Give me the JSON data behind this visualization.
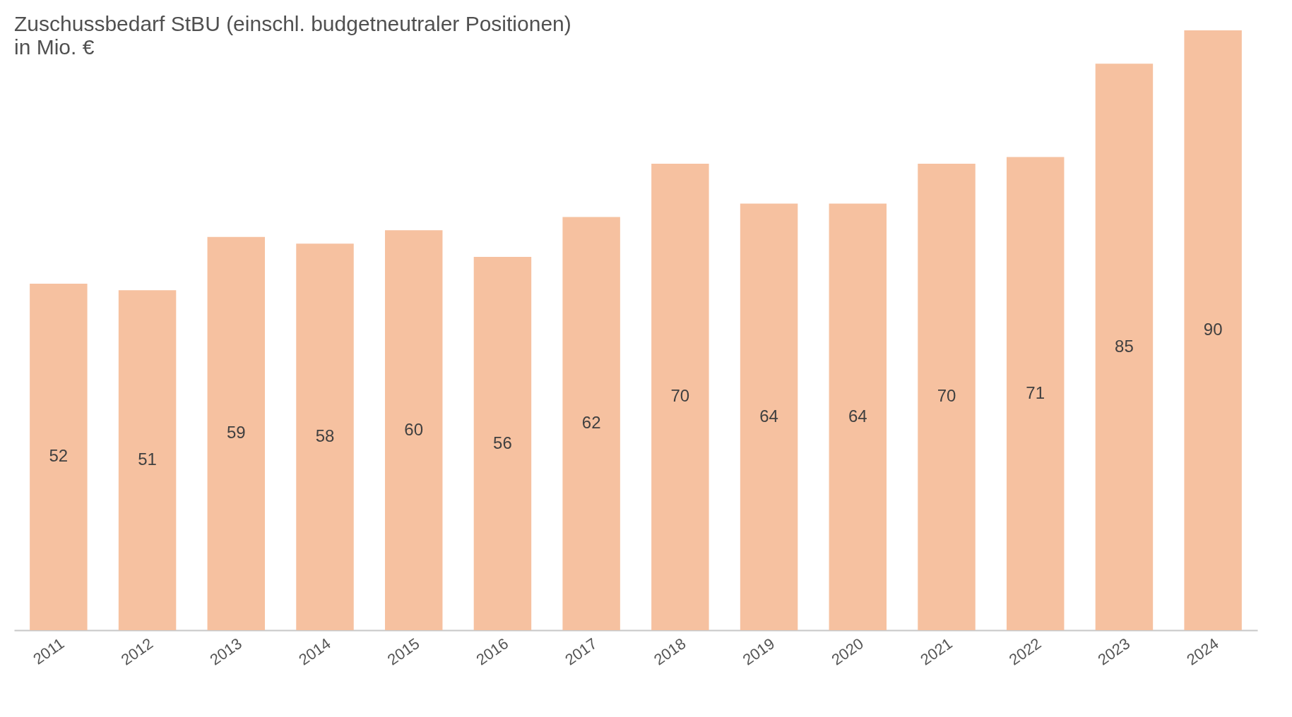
{
  "chart_data": {
    "type": "bar",
    "title": "Zuschussbedarf StBU (einschl. budgetneutraler Positionen)",
    "subtitle": "in Mio. €",
    "categories": [
      "2011",
      "2012",
      "2013",
      "2014",
      "2015",
      "2016",
      "2017",
      "2018",
      "2019",
      "2020",
      "2021",
      "2022",
      "2023",
      "2024"
    ],
    "values": [
      52,
      51,
      59,
      58,
      60,
      56,
      62,
      70,
      64,
      64,
      70,
      71,
      85,
      90
    ],
    "color": "#f6c1a0",
    "data_labels": true
  }
}
